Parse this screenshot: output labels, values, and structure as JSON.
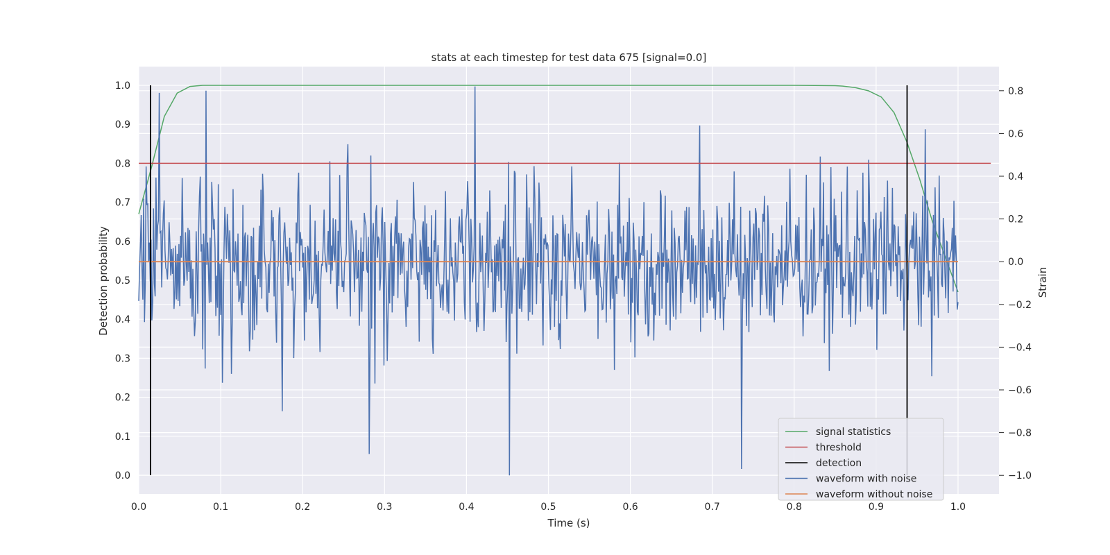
{
  "chart_data": {
    "type": "line",
    "title": "stats at each timestep for test data 675 [signal=0.0]",
    "xlabel": "Time (s)",
    "ylabel_left": "Detection probability",
    "ylabel_right": "Strain",
    "xlim": [
      0.0,
      1.05
    ],
    "ylim_left": [
      -0.048,
      1.048
    ],
    "ylim_right": [
      -1.087,
      0.913
    ],
    "x_ticks": [
      "0.0",
      "0.1",
      "0.2",
      "0.3",
      "0.4",
      "0.5",
      "0.6",
      "0.7",
      "0.8",
      "0.9",
      "1.0"
    ],
    "y_left_ticks": [
      "0.0",
      "0.1",
      "0.2",
      "0.3",
      "0.4",
      "0.5",
      "0.6",
      "0.7",
      "0.8",
      "0.9",
      "1.0"
    ],
    "y_right_ticks": [
      "−1.0",
      "−0.8",
      "−0.6",
      "−0.4",
      "−0.2",
      "0.0",
      "0.2",
      "0.4",
      "0.6",
      "0.8"
    ],
    "grid": true,
    "legend_position": "lower-right",
    "series": [
      {
        "name": "signal statistics",
        "axis": "left",
        "color": "#55a868",
        "x": [
          0.0,
          0.0156,
          0.0312,
          0.0469,
          0.0625,
          0.0781,
          0.0938,
          0.15,
          0.3,
          0.5,
          0.7,
          0.8,
          0.85,
          0.8594,
          0.875,
          0.8906,
          0.9063,
          0.9219,
          0.9375,
          0.9531,
          0.9688,
          0.9844,
          1.0
        ],
        "y": [
          0.67,
          0.79,
          0.92,
          0.98,
          0.997,
          1.0,
          1.0,
          1.0,
          1.0,
          1.0,
          1.0,
          1.0,
          0.999,
          0.998,
          0.994,
          0.986,
          0.97,
          0.93,
          0.855,
          0.76,
          0.65,
          0.56,
          0.47
        ]
      },
      {
        "name": "threshold",
        "axis": "left",
        "color": "#c44e52",
        "x": [
          0.0,
          1.04
        ],
        "y": [
          0.8,
          0.8
        ]
      },
      {
        "name": "detection",
        "axis": "left",
        "color": "#000000",
        "segments": [
          {
            "x": 0.0143,
            "y": [
              0.0,
              1.0
            ]
          },
          {
            "x": 0.9378,
            "y": [
              0.0,
              1.0
            ]
          }
        ]
      },
      {
        "name": "waveform with noise",
        "axis": "right",
        "color": "#4c72b0",
        "x_range": [
          0.0,
          1.0
        ],
        "n_points": 1000,
        "note_points": [
          [
            0.41,
            0.82
          ],
          [
            0.452,
            -1.0
          ],
          [
            0.736,
            -0.97
          ],
          [
            0.281,
            -0.9
          ],
          [
            0.082,
            0.8
          ],
          [
            0.025,
            0.79
          ],
          [
            0.175,
            -0.7
          ]
        ]
      },
      {
        "name": "waveform without noise",
        "axis": "right",
        "color": "#dd8452",
        "x": [
          0.0,
          1.0
        ],
        "y": [
          0.0,
          0.0
        ]
      }
    ]
  }
}
